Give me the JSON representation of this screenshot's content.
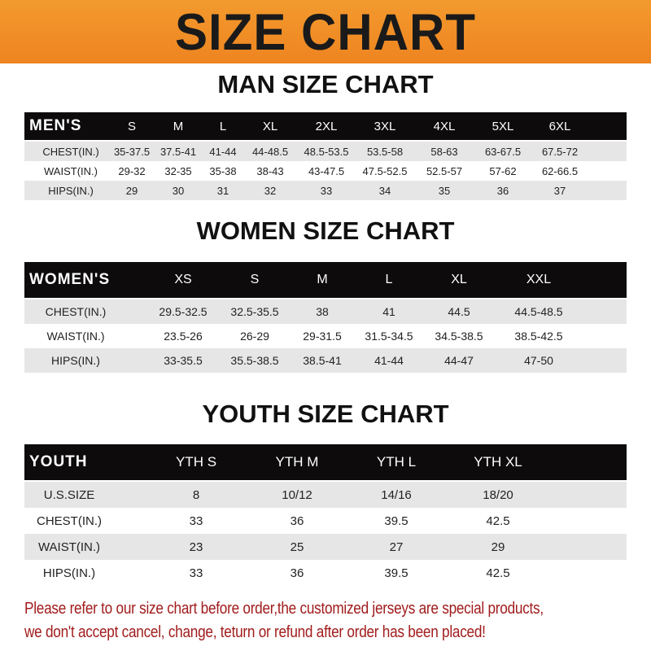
{
  "banner_title": "SIZE CHART",
  "tables": [
    {
      "title": "MAN SIZE CHART",
      "header": [
        "MEN'S",
        "S",
        "M",
        "L",
        "XL",
        "2XL",
        "3XL",
        "4XL",
        "5XL",
        "6XL"
      ],
      "rows": [
        [
          "CHEST(IN.)",
          "35-37.5",
          "37.5-41",
          "41-44",
          "44-48.5",
          "48.5-53.5",
          "53.5-58",
          "58-63",
          "63-67.5",
          "67.5-72"
        ],
        [
          "WAIST(IN.)",
          "29-32",
          "32-35",
          "35-38",
          "38-43",
          "43-47.5",
          "47.5-52.5",
          "52.5-57",
          "57-62",
          "62-66.5"
        ],
        [
          "HIPS(IN.)",
          "29",
          "30",
          "31",
          "32",
          "33",
          "34",
          "35",
          "36",
          "37"
        ]
      ]
    },
    {
      "title": "WOMEN SIZE CHART",
      "header": [
        "WOMEN'S",
        "XS",
        "S",
        "M",
        "L",
        "XL",
        "XXL"
      ],
      "rows": [
        [
          "CHEST(IN.)",
          "29.5-32.5",
          "32.5-35.5",
          "38",
          "41",
          "44.5",
          "44.5-48.5"
        ],
        [
          "WAIST(IN.)",
          "23.5-26",
          "26-29",
          "29-31.5",
          "31.5-34.5",
          "34.5-38.5",
          "38.5-42.5"
        ],
        [
          "HIPS(IN.)",
          "33-35.5",
          "35.5-38.5",
          "38.5-41",
          "41-44",
          "44-47",
          "47-50"
        ]
      ]
    },
    {
      "title": "YOUTH SIZE CHART",
      "header": [
        "YOUTH",
        "YTH S",
        "YTH M",
        "YTH L",
        "YTH XL"
      ],
      "rows": [
        [
          "U.S.SIZE",
          "8",
          "10/12",
          "14/16",
          "18/20"
        ],
        [
          "CHEST(IN.)",
          "33",
          "36",
          "39.5",
          "42.5"
        ],
        [
          "WAIST(IN.)",
          "23",
          "25",
          "27",
          "29"
        ],
        [
          "HIPS(IN.)",
          "33",
          "36",
          "39.5",
          "42.5"
        ]
      ]
    }
  ],
  "notice": {
    "line1": "Please refer to our size chart before order,the customized jerseys are special products,",
    "line2": "we don't accept cancel, change, teturn or refund after order has been placed!"
  },
  "colors": {
    "banner": "#ee8420",
    "header_row": "#0d0b0b",
    "stripe": "#e6e6e6",
    "notice": "#a11c1c"
  }
}
